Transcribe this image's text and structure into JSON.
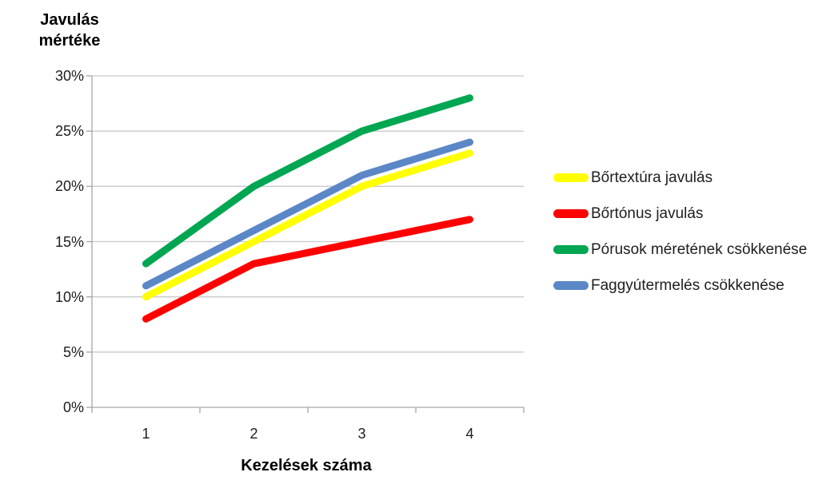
{
  "chart_data": {
    "type": "line",
    "y_axis_title_lines": [
      "Javulás",
      "mértéke"
    ],
    "x_axis_title": "Kezelések száma",
    "categories": [
      "1",
      "2",
      "3",
      "4"
    ],
    "series": [
      {
        "name": "Bőrtextúra javulás",
        "color": "#FFFF00",
        "values": [
          10,
          15,
          20,
          23
        ]
      },
      {
        "name": "Bőrtónus javulás",
        "color": "#FF0000",
        "values": [
          8,
          13,
          15,
          17
        ]
      },
      {
        "name": "Pórusok méretének csökkenése",
        "color": "#00A651",
        "values": [
          13,
          20,
          25,
          28
        ]
      },
      {
        "name": "Faggyútermelés csökkenése",
        "color": "#5B87C7",
        "values": [
          11,
          16,
          21,
          24
        ]
      }
    ],
    "y_ticks": [
      "0%",
      "5%",
      "10%",
      "15%",
      "20%",
      "25%",
      "30%"
    ],
    "ylim": [
      0,
      30
    ],
    "y_tick_step": 5,
    "grid": "horizontal",
    "legend_position": "right"
  },
  "colors": {
    "gridline": "#C9C9C9",
    "axis": "#A6A6A6",
    "tick_text": "#1C1C1C",
    "title_text": "#000000",
    "background": "#FFFFFF"
  }
}
